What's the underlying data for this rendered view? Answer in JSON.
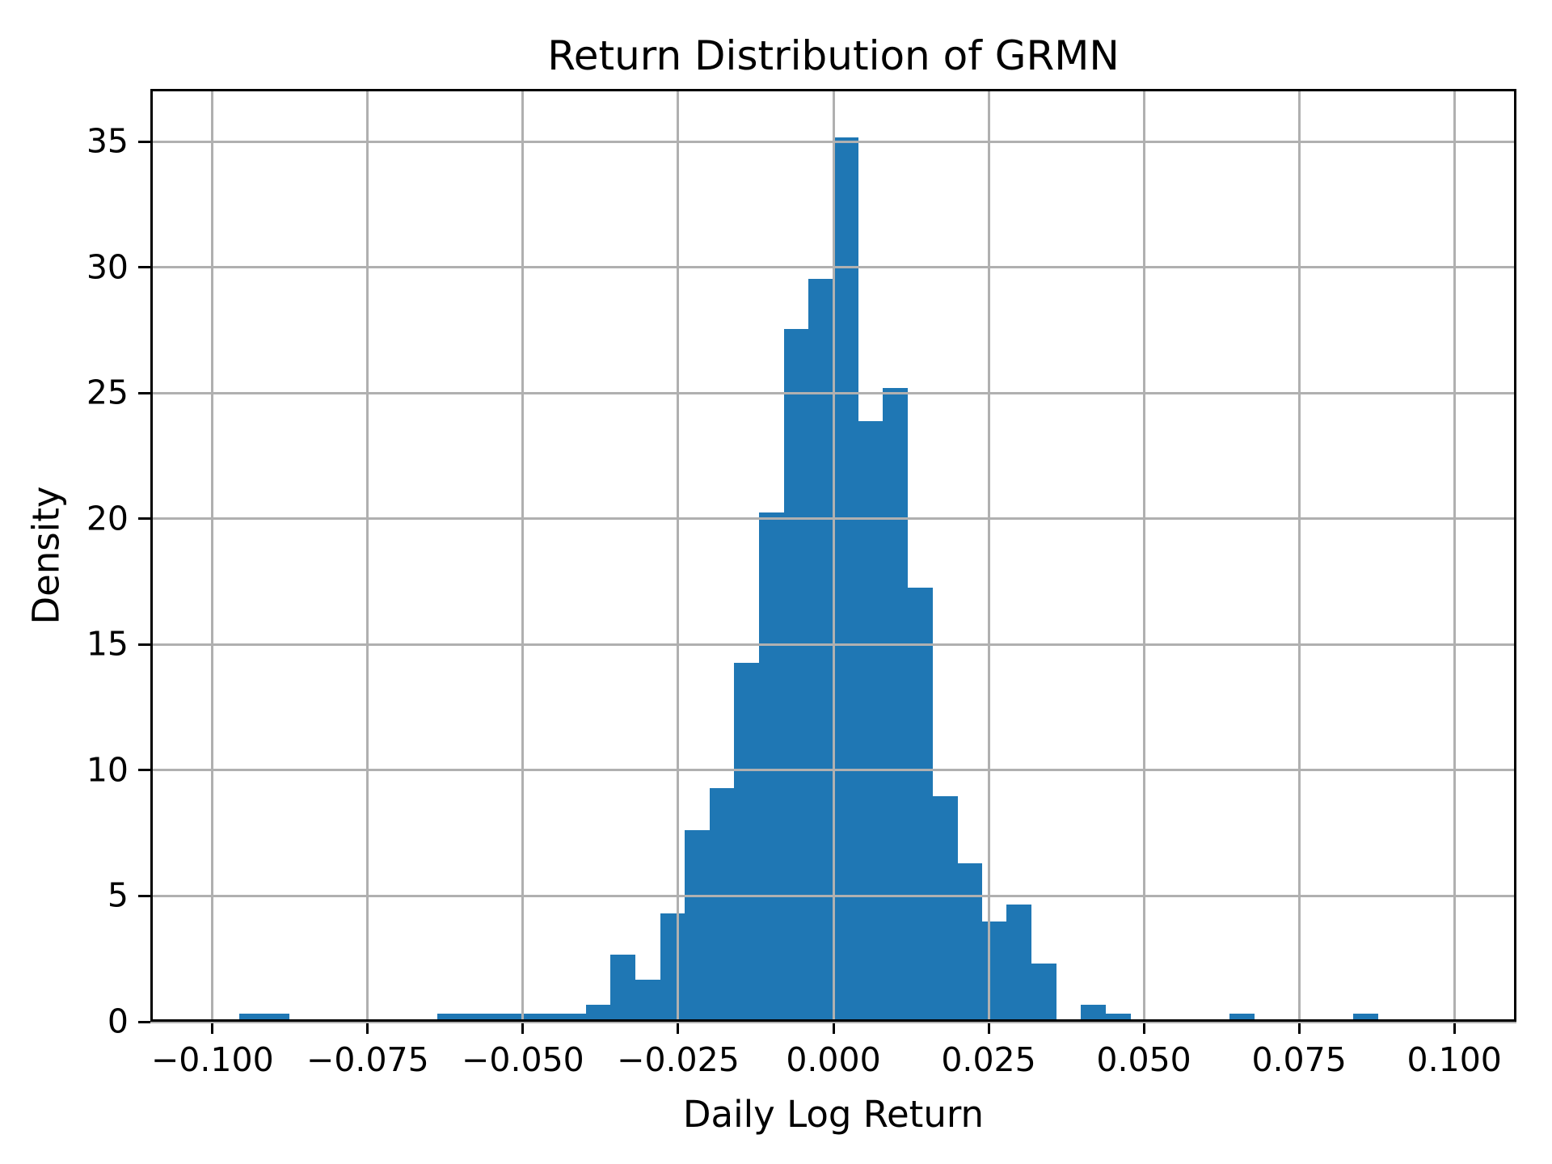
{
  "chart_data": {
    "type": "bar",
    "subtype": "histogram",
    "title": "Return Distribution of GRMN",
    "xlabel": "Daily Log Return",
    "ylabel": "Density",
    "bar_color": "#1f77b4",
    "grid_color": "#b0b0b0",
    "axis_color": "#000000",
    "background_color": "#ffffff",
    "grid": true,
    "legend_position": "none",
    "xlim": [
      -0.11,
      0.11
    ],
    "ylim": [
      0,
      37.1
    ],
    "x_ticks": [
      {
        "value": -0.1,
        "label": "−0.100"
      },
      {
        "value": -0.075,
        "label": "−0.075"
      },
      {
        "value": -0.05,
        "label": "−0.050"
      },
      {
        "value": -0.025,
        "label": "−0.025"
      },
      {
        "value": 0.0,
        "label": "0.000"
      },
      {
        "value": 0.025,
        "label": "0.025"
      },
      {
        "value": 0.05,
        "label": "0.050"
      },
      {
        "value": 0.075,
        "label": "0.075"
      },
      {
        "value": 0.1,
        "label": "0.100"
      }
    ],
    "y_ticks": [
      {
        "value": 0,
        "label": "0"
      },
      {
        "value": 5,
        "label": "5"
      },
      {
        "value": 10,
        "label": "10"
      },
      {
        "value": 15,
        "label": "15"
      },
      {
        "value": 20,
        "label": "20"
      },
      {
        "value": 25,
        "label": "25"
      },
      {
        "value": 30,
        "label": "30"
      },
      {
        "value": 35,
        "label": "35"
      }
    ],
    "bins": {
      "start": -0.0957,
      "width": 0.003987,
      "count": 46,
      "densities": [
        0.33,
        0.33,
        0,
        0,
        0,
        0,
        0,
        0,
        0.33,
        0.33,
        0.33,
        0.33,
        0.33,
        0.33,
        0.66,
        2.66,
        1.66,
        4.31,
        7.63,
        9.29,
        14.27,
        20.24,
        27.54,
        29.53,
        35.17,
        23.89,
        25.22,
        17.25,
        8.96,
        6.3,
        3.98,
        4.65,
        2.32,
        0,
        0.66,
        0.33,
        0,
        0,
        0,
        0,
        0.33,
        0,
        0,
        0,
        0,
        0.33
      ]
    },
    "peak_density": 35.17
  }
}
